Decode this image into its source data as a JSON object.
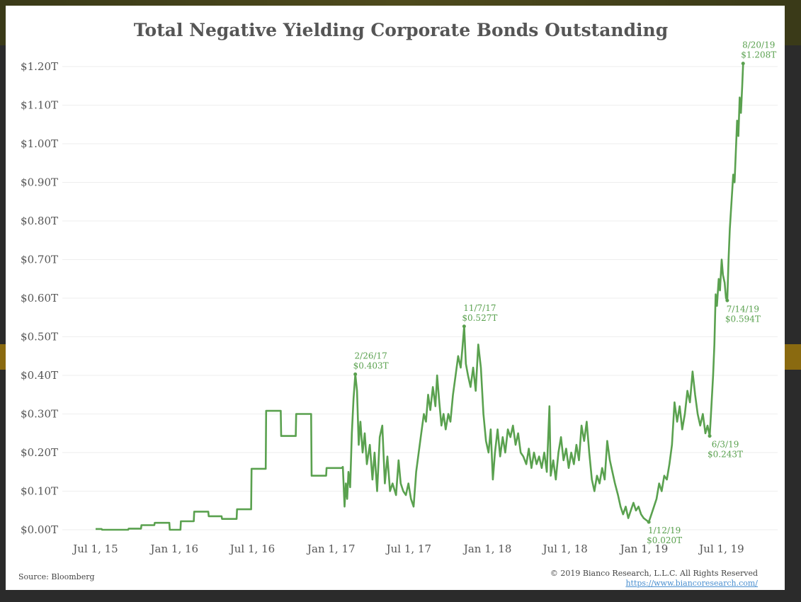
{
  "page": {
    "source": "Source: Bloomberg",
    "copyright": "© 2019 Bianco Research, L.L.C. All Rights Reserved",
    "website": "https://www.biancoresearch.com/"
  },
  "colors": {
    "line": "#5aa14f",
    "grid": "#eeeeee",
    "background": "#ffffff",
    "text": "#555555"
  },
  "chart_data": {
    "type": "line",
    "title": "Total Negative Yielding Corporate Bonds Outstanding",
    "xlabel": "",
    "ylabel": "",
    "ylim": [
      0,
      1.2
    ],
    "xlim": [
      "2015-07-01",
      "2019-10-15"
    ],
    "grid": "horizontal",
    "ytick_labels": [
      "$0.00T",
      "$0.10T",
      "$0.20T",
      "$0.30T",
      "$0.40T",
      "$0.50T",
      "$0.60T",
      "$0.70T",
      "$0.80T",
      "$0.90T",
      "$1.00T",
      "$1.10T",
      "$1.20T"
    ],
    "ytick_values": [
      0,
      0.1,
      0.2,
      0.3,
      0.4,
      0.5,
      0.6,
      0.7,
      0.8,
      0.9,
      1.0,
      1.1,
      1.2
    ],
    "xtick_labels": [
      "Jul 1, 15",
      "Jan 1, 16",
      "Jul 1, 16",
      "Jan 1, 17",
      "Jul 1, 17",
      "Jan 1, 18",
      "Jul 1, 18",
      "Jan 1, 19",
      "Jul 1, 19"
    ],
    "xtick_dates": [
      "2015-07-01",
      "2016-01-01",
      "2016-07-01",
      "2017-01-01",
      "2017-07-01",
      "2018-01-01",
      "2018-07-01",
      "2019-01-01",
      "2019-07-01"
    ],
    "series": [
      {
        "points": [
          [
            "2015-07-01",
            0.002
          ],
          [
            "2015-07-15",
            0.002
          ],
          [
            "2015-07-16",
            0.0
          ],
          [
            "2015-09-15",
            0.0
          ],
          [
            "2015-09-16",
            0.003
          ],
          [
            "2015-10-15",
            0.003
          ],
          [
            "2015-10-16",
            0.012
          ],
          [
            "2015-11-15",
            0.012
          ],
          [
            "2015-11-16",
            0.018
          ],
          [
            "2015-12-20",
            0.018
          ],
          [
            "2015-12-21",
            0.0
          ],
          [
            "2016-01-15",
            0.0
          ],
          [
            "2016-01-16",
            0.022
          ],
          [
            "2016-02-15",
            0.022
          ],
          [
            "2016-02-16",
            0.047
          ],
          [
            "2016-03-20",
            0.047
          ],
          [
            "2016-03-21",
            0.035
          ],
          [
            "2016-04-20",
            0.035
          ],
          [
            "2016-04-21",
            0.028
          ],
          [
            "2016-05-25",
            0.028
          ],
          [
            "2016-05-26",
            0.053
          ],
          [
            "2016-06-28",
            0.053
          ],
          [
            "2016-06-29",
            0.158
          ],
          [
            "2016-08-01",
            0.158
          ],
          [
            "2016-08-02",
            0.308
          ],
          [
            "2016-09-05",
            0.308
          ],
          [
            "2016-09-06",
            0.243
          ],
          [
            "2016-10-10",
            0.243
          ],
          [
            "2016-10-11",
            0.3
          ],
          [
            "2016-11-15",
            0.3
          ],
          [
            "2016-11-16",
            0.14
          ],
          [
            "2016-12-20",
            0.14
          ],
          [
            "2016-12-21",
            0.16
          ],
          [
            "2017-01-25",
            0.16
          ],
          [
            "2017-01-28",
            0.163
          ],
          [
            "2017-02-01",
            0.06
          ],
          [
            "2017-02-04",
            0.12
          ],
          [
            "2017-02-07",
            0.08
          ],
          [
            "2017-02-10",
            0.15
          ],
          [
            "2017-02-14",
            0.11
          ],
          [
            "2017-02-18",
            0.25
          ],
          [
            "2017-02-22",
            0.34
          ],
          [
            "2017-02-26",
            0.403
          ],
          [
            "2017-03-02",
            0.36
          ],
          [
            "2017-03-06",
            0.22
          ],
          [
            "2017-03-10",
            0.28
          ],
          [
            "2017-03-15",
            0.2
          ],
          [
            "2017-03-20",
            0.25
          ],
          [
            "2017-03-25",
            0.17
          ],
          [
            "2017-04-01",
            0.22
          ],
          [
            "2017-04-07",
            0.13
          ],
          [
            "2017-04-12",
            0.2
          ],
          [
            "2017-04-18",
            0.1
          ],
          [
            "2017-04-24",
            0.24
          ],
          [
            "2017-04-30",
            0.27
          ],
          [
            "2017-05-06",
            0.12
          ],
          [
            "2017-05-12",
            0.19
          ],
          [
            "2017-05-18",
            0.1
          ],
          [
            "2017-05-24",
            0.12
          ],
          [
            "2017-06-01",
            0.09
          ],
          [
            "2017-06-07",
            0.18
          ],
          [
            "2017-06-12",
            0.12
          ],
          [
            "2017-06-18",
            0.1
          ],
          [
            "2017-06-24",
            0.09
          ],
          [
            "2017-06-30",
            0.12
          ],
          [
            "2017-07-06",
            0.08
          ],
          [
            "2017-07-12",
            0.06
          ],
          [
            "2017-07-18",
            0.15
          ],
          [
            "2017-07-24",
            0.2
          ],
          [
            "2017-07-30",
            0.25
          ],
          [
            "2017-08-05",
            0.3
          ],
          [
            "2017-08-10",
            0.28
          ],
          [
            "2017-08-15",
            0.35
          ],
          [
            "2017-08-20",
            0.31
          ],
          [
            "2017-08-26",
            0.37
          ],
          [
            "2017-09-01",
            0.32
          ],
          [
            "2017-09-05",
            0.4
          ],
          [
            "2017-09-10",
            0.33
          ],
          [
            "2017-09-15",
            0.27
          ],
          [
            "2017-09-20",
            0.3
          ],
          [
            "2017-09-25",
            0.26
          ],
          [
            "2017-10-01",
            0.3
          ],
          [
            "2017-10-06",
            0.28
          ],
          [
            "2017-10-12",
            0.35
          ],
          [
            "2017-10-18",
            0.4
          ],
          [
            "2017-10-24",
            0.45
          ],
          [
            "2017-10-30",
            0.42
          ],
          [
            "2017-11-03",
            0.47
          ],
          [
            "2017-11-07",
            0.527
          ],
          [
            "2017-11-11",
            0.43
          ],
          [
            "2017-11-16",
            0.4
          ],
          [
            "2017-11-22",
            0.37
          ],
          [
            "2017-11-28",
            0.42
          ],
          [
            "2017-12-04",
            0.36
          ],
          [
            "2017-12-10",
            0.48
          ],
          [
            "2017-12-16",
            0.42
          ],
          [
            "2017-12-22",
            0.3
          ],
          [
            "2017-12-28",
            0.23
          ],
          [
            "2018-01-03",
            0.2
          ],
          [
            "2018-01-08",
            0.26
          ],
          [
            "2018-01-13",
            0.13
          ],
          [
            "2018-01-18",
            0.2
          ],
          [
            "2018-01-24",
            0.26
          ],
          [
            "2018-01-30",
            0.19
          ],
          [
            "2018-02-05",
            0.24
          ],
          [
            "2018-02-11",
            0.2
          ],
          [
            "2018-02-17",
            0.26
          ],
          [
            "2018-02-23",
            0.24
          ],
          [
            "2018-03-01",
            0.27
          ],
          [
            "2018-03-07",
            0.22
          ],
          [
            "2018-03-13",
            0.25
          ],
          [
            "2018-03-19",
            0.2
          ],
          [
            "2018-03-25",
            0.19
          ],
          [
            "2018-04-01",
            0.17
          ],
          [
            "2018-04-07",
            0.21
          ],
          [
            "2018-04-13",
            0.16
          ],
          [
            "2018-04-19",
            0.2
          ],
          [
            "2018-04-25",
            0.17
          ],
          [
            "2018-05-01",
            0.19
          ],
          [
            "2018-05-07",
            0.16
          ],
          [
            "2018-05-13",
            0.2
          ],
          [
            "2018-05-19",
            0.15
          ],
          [
            "2018-05-25",
            0.32
          ],
          [
            "2018-05-28",
            0.14
          ],
          [
            "2018-06-03",
            0.18
          ],
          [
            "2018-06-09",
            0.13
          ],
          [
            "2018-06-15",
            0.2
          ],
          [
            "2018-06-21",
            0.24
          ],
          [
            "2018-06-27",
            0.18
          ],
          [
            "2018-07-03",
            0.21
          ],
          [
            "2018-07-09",
            0.16
          ],
          [
            "2018-07-15",
            0.2
          ],
          [
            "2018-07-21",
            0.17
          ],
          [
            "2018-07-27",
            0.22
          ],
          [
            "2018-08-02",
            0.18
          ],
          [
            "2018-08-08",
            0.27
          ],
          [
            "2018-08-14",
            0.23
          ],
          [
            "2018-08-20",
            0.28
          ],
          [
            "2018-08-26",
            0.2
          ],
          [
            "2018-09-01",
            0.13
          ],
          [
            "2018-09-07",
            0.1
          ],
          [
            "2018-09-13",
            0.14
          ],
          [
            "2018-09-19",
            0.12
          ],
          [
            "2018-09-25",
            0.16
          ],
          [
            "2018-10-01",
            0.13
          ],
          [
            "2018-10-07",
            0.23
          ],
          [
            "2018-10-13",
            0.18
          ],
          [
            "2018-10-19",
            0.15
          ],
          [
            "2018-10-25",
            0.12
          ],
          [
            "2018-11-01",
            0.09
          ],
          [
            "2018-11-07",
            0.06
          ],
          [
            "2018-11-13",
            0.04
          ],
          [
            "2018-11-19",
            0.06
          ],
          [
            "2018-11-25",
            0.03
          ],
          [
            "2018-12-01",
            0.05
          ],
          [
            "2018-12-07",
            0.07
          ],
          [
            "2018-12-13",
            0.05
          ],
          [
            "2018-12-19",
            0.06
          ],
          [
            "2018-12-25",
            0.04
          ],
          [
            "2018-12-31",
            0.03
          ],
          [
            "2019-01-06",
            0.025
          ],
          [
            "2019-01-12",
            0.02
          ],
          [
            "2019-01-18",
            0.04
          ],
          [
            "2019-01-24",
            0.06
          ],
          [
            "2019-01-30",
            0.08
          ],
          [
            "2019-02-05",
            0.12
          ],
          [
            "2019-02-11",
            0.1
          ],
          [
            "2019-02-17",
            0.14
          ],
          [
            "2019-02-23",
            0.13
          ],
          [
            "2019-03-01",
            0.17
          ],
          [
            "2019-03-07",
            0.22
          ],
          [
            "2019-03-13",
            0.33
          ],
          [
            "2019-03-19",
            0.28
          ],
          [
            "2019-03-25",
            0.32
          ],
          [
            "2019-03-31",
            0.26
          ],
          [
            "2019-04-06",
            0.3
          ],
          [
            "2019-04-12",
            0.36
          ],
          [
            "2019-04-18",
            0.33
          ],
          [
            "2019-04-24",
            0.41
          ],
          [
            "2019-04-30",
            0.35
          ],
          [
            "2019-05-06",
            0.3
          ],
          [
            "2019-05-12",
            0.27
          ],
          [
            "2019-05-18",
            0.3
          ],
          [
            "2019-05-24",
            0.25
          ],
          [
            "2019-05-29",
            0.27
          ],
          [
            "2019-06-03",
            0.243
          ],
          [
            "2019-06-07",
            0.32
          ],
          [
            "2019-06-11",
            0.4
          ],
          [
            "2019-06-14",
            0.48
          ],
          [
            "2019-06-17",
            0.61
          ],
          [
            "2019-06-20",
            0.58
          ],
          [
            "2019-06-24",
            0.65
          ],
          [
            "2019-06-27",
            0.62
          ],
          [
            "2019-07-01",
            0.7
          ],
          [
            "2019-07-04",
            0.66
          ],
          [
            "2019-07-08",
            0.64
          ],
          [
            "2019-07-11",
            0.6
          ],
          [
            "2019-07-14",
            0.594
          ],
          [
            "2019-07-17",
            0.7
          ],
          [
            "2019-07-20",
            0.78
          ],
          [
            "2019-07-24",
            0.85
          ],
          [
            "2019-07-28",
            0.92
          ],
          [
            "2019-07-31",
            0.9
          ],
          [
            "2019-08-03",
            0.98
          ],
          [
            "2019-08-06",
            1.06
          ],
          [
            "2019-08-09",
            1.02
          ],
          [
            "2019-08-12",
            1.12
          ],
          [
            "2019-08-15",
            1.08
          ],
          [
            "2019-08-18",
            1.15
          ],
          [
            "2019-08-20",
            1.208
          ]
        ]
      }
    ],
    "annotations": [
      {
        "date": "2017-02-26",
        "value": 0.403,
        "line1": "2/26/17",
        "line2": "$0.403T",
        "position": "above"
      },
      {
        "date": "2017-11-07",
        "value": 0.527,
        "line1": "11/7/17",
        "line2": "$0.527T",
        "position": "above"
      },
      {
        "date": "2019-01-12",
        "value": 0.02,
        "line1": "1/12/19",
        "line2": "$0.020T",
        "position": "below"
      },
      {
        "date": "2019-06-03",
        "value": 0.243,
        "line1": "6/3/19",
        "line2": "$0.243T",
        "position": "below"
      },
      {
        "date": "2019-07-14",
        "value": 0.594,
        "line1": "7/14/19",
        "line2": "$0.594T",
        "position": "below"
      },
      {
        "date": "2019-08-20",
        "value": 1.208,
        "line1": "8/20/19",
        "line2": "$1.208T",
        "position": "above"
      }
    ]
  }
}
